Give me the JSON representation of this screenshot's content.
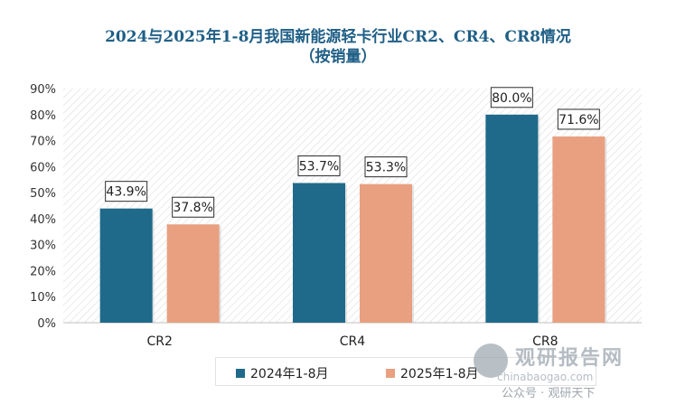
{
  "chart_data": {
    "type": "bar",
    "title_line1": "2024与2025年1-8月我国新能源轻卡行业CR2、CR4、CR8情况",
    "title_line2": "（按销量）",
    "categories": [
      "CR2",
      "CR4",
      "CR8"
    ],
    "series": [
      {
        "name": "2024年1-8月",
        "color": "#1f6a8a",
        "values": [
          43.9,
          53.7,
          80.0
        ],
        "labels": [
          "43.9%",
          "53.7%",
          "80.0%"
        ]
      },
      {
        "name": "2025年1-8月",
        "color": "#e8a080",
        "values": [
          37.8,
          53.3,
          71.6
        ],
        "labels": [
          "37.8%",
          "53.3%",
          "71.6%"
        ]
      }
    ],
    "y_ticks": [
      "0%",
      "10%",
      "20%",
      "30%",
      "40%",
      "50%",
      "60%",
      "70%",
      "80%",
      "90%"
    ],
    "ylim": [
      0,
      90
    ],
    "xlabel": "",
    "ylabel": "",
    "legend_position": "bottom"
  },
  "watermark": {
    "title": "观研报告网",
    "url": "chinabaogao.com",
    "sub": "公众号 · 观研天下"
  }
}
